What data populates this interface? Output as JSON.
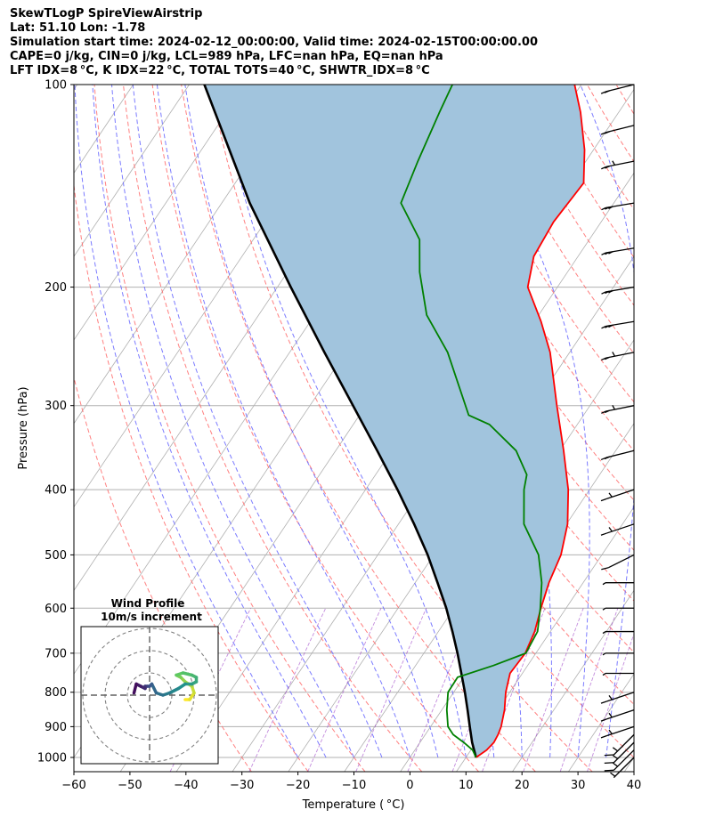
{
  "header": {
    "line1": "SkewTLogP SpireViewAirstrip",
    "line2": "Lat: 51.10   Lon: -1.78",
    "line3": "Simulation start time: 2024-02-12_00:00:00, Valid time: 2024-02-15T00:00:00.00",
    "line4": "CAPE=0 j/kg, CIN=0 j/kg, LCL=989 hPa, LFC=nan hPa, EQ=nan hPa",
    "line5": "LFT IDX=8 °C, K IDX=22 °C, TOTAL TOTS=40 °C, SHWTR_IDX=8 °C"
  },
  "chart_data": {
    "type": "line",
    "title": "SkewTLogP SpireViewAirstrip",
    "xlabel": "Temperature ( °C)",
    "ylabel": "Pressure (hPa)",
    "xlim": [
      -60,
      40
    ],
    "ylim": [
      1050,
      100
    ],
    "x_ticks": [
      -60,
      -50,
      -40,
      -30,
      -20,
      -10,
      0,
      10,
      20,
      30,
      40
    ],
    "x_tick_labels": [
      "−60",
      "−50",
      "−40",
      "−30",
      "−20",
      "−10",
      "0",
      "10",
      "20",
      "30",
      "40"
    ],
    "y_ticks": [
      1000,
      900,
      800,
      700,
      600,
      500,
      400,
      300,
      200,
      100
    ],
    "y_tick_labels": [
      "1000",
      "900",
      "800",
      "700",
      "600",
      "500",
      "400",
      "300",
      "200",
      "100"
    ],
    "series": [
      {
        "name": "Temperature",
        "color": "#ff0000",
        "p": [
          1000,
          975,
          950,
          925,
          900,
          850,
          800,
          750,
          700,
          650,
          600,
          550,
          500,
          450,
          400,
          350,
          300,
          250,
          225,
          200,
          180,
          160,
          140,
          125,
          110,
          100
        ],
        "t": [
          11.8,
          12.8,
          13.2,
          13.0,
          12.6,
          11.2,
          9.3,
          7.8,
          8.1,
          7.2,
          5.5,
          3.9,
          2.7,
          0.2,
          -3.8,
          -9.3,
          -15.9,
          -23.5,
          -28.8,
          -35.3,
          -37.9,
          -38.5,
          -37.8,
          -41.6,
          -46.8,
          -51.2
        ]
      },
      {
        "name": "Dewpoint",
        "color": "#008000",
        "p": [
          1000,
          975,
          950,
          925,
          900,
          850,
          800,
          760,
          730,
          700,
          650,
          600,
          550,
          500,
          450,
          400,
          380,
          350,
          320,
          310,
          250,
          220,
          190,
          170,
          150,
          130,
          110,
          100
        ],
        "t": [
          11.8,
          10.3,
          7.8,
          5.0,
          3.1,
          0.9,
          -1.0,
          -1.1,
          3.9,
          8.2,
          7.7,
          5.4,
          2.6,
          -1.3,
          -7.6,
          -11.7,
          -13.0,
          -17.8,
          -25.7,
          -30.5,
          -41.8,
          -50.0,
          -56.4,
          -60.3,
          -68.0,
          -70.0,
          -72.0,
          -73.0
        ]
      },
      {
        "name": "Parcel",
        "color": "#000000",
        "p": [
          1000,
          950,
          900,
          850,
          800,
          750,
          700,
          650,
          600,
          550,
          500,
          450,
          400,
          350,
          300,
          250,
          200,
          150,
          100
        ],
        "t": [
          11.8,
          9.3,
          7.0,
          4.6,
          2.0,
          -0.9,
          -4.0,
          -7.5,
          -11.4,
          -16.0,
          -21.1,
          -27.2,
          -34.3,
          -42.6,
          -52.3,
          -63.8,
          -77.6,
          -95.0,
          -117.3
        ]
      }
    ],
    "wind_barbs": {
      "pressures_hPa": [
        1000,
        975,
        950,
        925,
        900,
        850,
        800,
        750,
        700,
        650,
        600,
        550,
        500,
        450,
        400,
        350,
        300,
        250,
        225,
        200,
        175,
        150,
        130,
        115,
        100
      ],
      "u_kt": [
        5,
        10,
        10,
        10,
        15,
        15,
        15,
        10,
        10,
        10,
        10,
        10,
        10,
        15,
        15,
        20,
        25,
        25,
        30,
        30,
        30,
        30,
        25,
        20,
        20
      ],
      "v_kt": [
        5,
        10,
        10,
        10,
        5,
        5,
        5,
        0,
        0,
        0,
        0,
        0,
        5,
        5,
        5,
        5,
        5,
        5,
        5,
        5,
        5,
        5,
        5,
        5,
        5
      ]
    },
    "inset": {
      "title": "Wind Profile",
      "subtitle": "10m/s increment",
      "rings_ms": [
        10,
        20,
        30
      ],
      "hodograph_u": [
        16,
        18,
        20,
        19,
        16,
        14,
        12,
        15,
        19,
        21,
        21,
        19,
        16,
        13,
        9,
        6,
        3,
        1,
        0,
        -1,
        -2,
        -2,
        -4,
        -6,
        -7
      ],
      "hodograph_v": [
        -2,
        -2,
        1,
        4,
        6,
        8,
        9,
        10,
        9,
        8,
        6,
        5,
        5,
        3,
        1,
        0,
        1,
        5,
        4,
        4,
        4,
        3,
        4,
        5,
        1
      ]
    },
    "colors": {
      "fill": "#a1c4dd",
      "dry_adiabat": "#ff6a6a",
      "moist_adiabat": "#6464ff",
      "mixing_ratio": "#9b3fc7",
      "isotherm": "#b0b0b0"
    }
  }
}
